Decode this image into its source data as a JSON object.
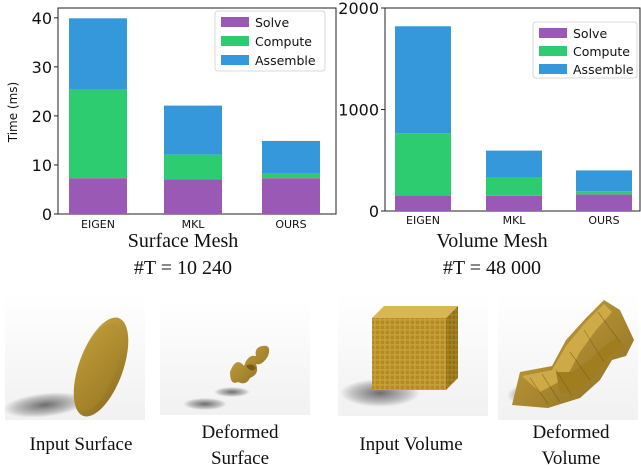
{
  "colors": {
    "Solve": "#9b59b6",
    "Compute": "#2ecc71",
    "Assemble": "#3498db"
  },
  "chart_data": [
    {
      "type": "bar",
      "stacked": true,
      "categories": [
        "EIGEN",
        "MKL",
        "OURS"
      ],
      "series": [
        {
          "name": "Solve",
          "values": [
            7.3,
            7.1,
            7.3
          ]
        },
        {
          "name": "Compute",
          "values": [
            18.1,
            5.0,
            0.9
          ]
        },
        {
          "name": "Assemble",
          "values": [
            14.5,
            10.0,
            6.7
          ]
        }
      ],
      "ylabel": "Time (ms)",
      "ylim": [
        0,
        42
      ],
      "yticks": [
        0,
        10,
        20,
        30,
        40
      ],
      "legend": "top-right",
      "subtitle": "Surface Mesh",
      "subtitle2": "#T = 10 240"
    },
    {
      "type": "bar",
      "stacked": true,
      "categories": [
        "EIGEN",
        "MKL",
        "OURS"
      ],
      "series": [
        {
          "name": "Solve",
          "values": [
            155,
            150,
            165
          ]
        },
        {
          "name": "Compute",
          "values": [
            610,
            185,
            30
          ]
        },
        {
          "name": "Assemble",
          "values": [
            1055,
            260,
            205
          ]
        }
      ],
      "ylabel": "",
      "ylim": [
        0,
        2000
      ],
      "yticks": [
        0,
        1000,
        2000
      ],
      "legend": "top-right",
      "subtitle": "Volume Mesh",
      "subtitle2": "#T = 48 000"
    }
  ],
  "captions": {
    "input_surface": "Input Surface",
    "deformed_surface_1": "Deformed",
    "deformed_surface_2": "Surface",
    "input_volume": "Input Volume",
    "deformed_volume_1": "Deformed",
    "deformed_volume_2": "Volume"
  }
}
